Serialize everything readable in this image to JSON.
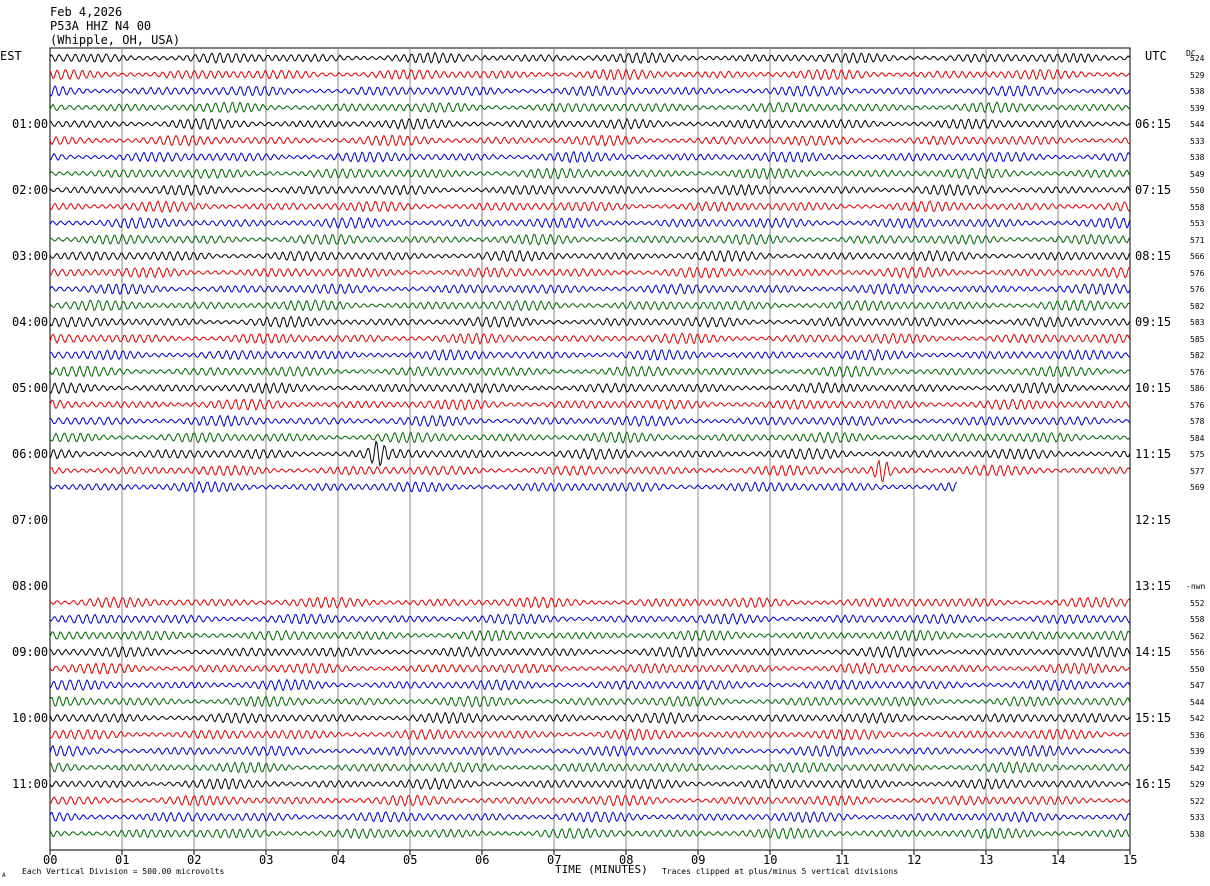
{
  "header": {
    "date": "Feb 4,2026",
    "station": "P53A HHZ N4 00",
    "location": "(Whipple, OH, USA)"
  },
  "left_axis_title": "EST",
  "right_axis_title": "UTC",
  "dc_header": "DC",
  "footer": {
    "scale_note": "Each Vertical Division =  500.00 microvolts",
    "xlabel": "TIME (MINUTES)",
    "clip_note": "Traces clipped at plus/minus 5 vertical divisions",
    "corner_mark": "A"
  },
  "colors": {
    "trace_cycle": [
      "#000000",
      "#dd0000",
      "#0000cc",
      "#006600"
    ],
    "grid": "#888888"
  },
  "chart_data": {
    "type": "line",
    "title": "P53A HHZ N4 00",
    "xlabel": "TIME (MINUTES)",
    "xlim": [
      0,
      15
    ],
    "x_ticks": [
      "00",
      "01",
      "02",
      "03",
      "04",
      "05",
      "06",
      "07",
      "08",
      "09",
      "10",
      "11",
      "12",
      "13",
      "14",
      "15"
    ],
    "est_hour_labels": [
      "01:00",
      "02:00",
      "03:00",
      "04:00",
      "05:00",
      "06:00",
      "07:00",
      "08:00",
      "09:00",
      "10:00",
      "11:00"
    ],
    "utc_hour_labels": [
      "06:15",
      "07:15",
      "08:15",
      "09:15",
      "10:15",
      "11:15",
      "12:15",
      "13:15",
      "14:15",
      "15:15",
      "16:15"
    ],
    "rows_per_hour": 4,
    "traces": [
      {
        "row": 0,
        "dc": "524",
        "x_end": 15
      },
      {
        "row": 1,
        "dc": "529",
        "x_end": 15
      },
      {
        "row": 2,
        "dc": "538",
        "x_end": 15
      },
      {
        "row": 3,
        "dc": "539",
        "x_end": 15
      },
      {
        "row": 4,
        "dc": "544",
        "x_end": 15
      },
      {
        "row": 5,
        "dc": "533",
        "x_end": 15
      },
      {
        "row": 6,
        "dc": "538",
        "x_end": 15
      },
      {
        "row": 7,
        "dc": "549",
        "x_end": 15
      },
      {
        "row": 8,
        "dc": "550",
        "x_end": 15
      },
      {
        "row": 9,
        "dc": "558",
        "x_end": 15
      },
      {
        "row": 10,
        "dc": "553",
        "x_end": 15
      },
      {
        "row": 11,
        "dc": "571",
        "x_end": 15
      },
      {
        "row": 12,
        "dc": "566",
        "x_end": 15
      },
      {
        "row": 13,
        "dc": "576",
        "x_end": 15
      },
      {
        "row": 14,
        "dc": "576",
        "x_end": 15
      },
      {
        "row": 15,
        "dc": "582",
        "x_end": 15
      },
      {
        "row": 16,
        "dc": "583",
        "x_end": 15
      },
      {
        "row": 17,
        "dc": "585",
        "x_end": 15
      },
      {
        "row": 18,
        "dc": "582",
        "x_end": 15
      },
      {
        "row": 19,
        "dc": "576",
        "x_end": 15
      },
      {
        "row": 20,
        "dc": "586",
        "x_end": 15
      },
      {
        "row": 21,
        "dc": "576",
        "x_end": 15
      },
      {
        "row": 22,
        "dc": "578",
        "x_end": 15
      },
      {
        "row": 23,
        "dc": "584",
        "x_end": 15
      },
      {
        "row": 24,
        "dc": "575",
        "x_end": 15,
        "event_x": 4.55
      },
      {
        "row": 25,
        "dc": "577",
        "x_end": 15,
        "event_x": 11.55
      },
      {
        "row": 26,
        "dc": "569",
        "x_end": 12.6
      },
      {
        "row": 33,
        "dc": "552",
        "x_end": 15
      },
      {
        "row": 34,
        "dc": "558",
        "x_end": 15
      },
      {
        "row": 35,
        "dc": "562",
        "x_end": 15
      },
      {
        "row": 36,
        "dc": "556",
        "x_end": 15
      },
      {
        "row": 37,
        "dc": "550",
        "x_end": 15
      },
      {
        "row": 38,
        "dc": "547",
        "x_end": 15
      },
      {
        "row": 39,
        "dc": "544",
        "x_end": 15
      },
      {
        "row": 40,
        "dc": "542",
        "x_end": 15
      },
      {
        "row": 41,
        "dc": "536",
        "x_end": 15
      },
      {
        "row": 42,
        "dc": "539",
        "x_end": 15
      },
      {
        "row": 43,
        "dc": "542",
        "x_end": 15
      },
      {
        "row": 44,
        "dc": "529",
        "x_end": 15
      },
      {
        "row": 45,
        "dc": "522",
        "x_end": 15
      },
      {
        "row": 46,
        "dc": "533",
        "x_end": 15
      },
      {
        "row": 47,
        "dc": "538",
        "x_end": 15
      }
    ],
    "gap_note_row": 32,
    "gap_note": "-nwn",
    "grid": true
  }
}
